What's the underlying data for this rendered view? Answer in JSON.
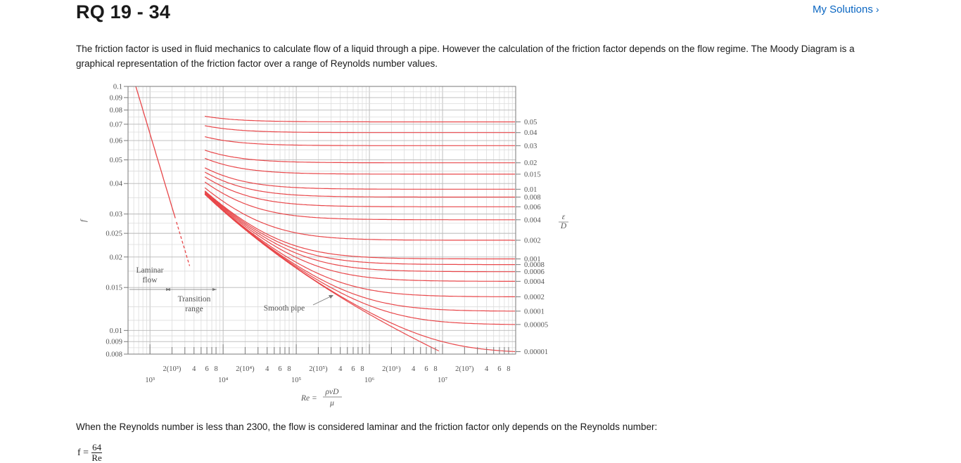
{
  "header": {
    "title": "RQ 19 - 34",
    "my_solutions_label": "My Solutions",
    "my_solutions_icon": "chevron-right-icon"
  },
  "intro_text": "The friction factor is used in fluid mechanics to calculate flow of a liquid through a pipe. However the calculation of the friction factor depends on the flow regime. The Moody Diagram is a graphical representation of the friction factor over a range of Reynolds number values.",
  "diagram": {
    "y_axis_label": "f",
    "right_axis_label_num": "ε",
    "right_axis_label_den": "D",
    "x_formula_lhs": "Re =",
    "x_formula_num": "ρvD",
    "x_formula_den": "μ",
    "laminar_label_1": "Laminar",
    "laminar_label_2": "flow",
    "transition_label_1": "Transition",
    "transition_label_2": "range",
    "smooth_pipe_label": "Smooth pipe",
    "y_ticks": [
      "0.1",
      "0.09",
      "0.08",
      "0.07",
      "0.06",
      "0.05",
      "0.04",
      "0.03",
      "0.025",
      "0.02",
      "0.015",
      "0.01",
      "0.009",
      "0.008"
    ],
    "x_decade_labels": [
      "10³",
      "10⁴",
      "10⁵",
      "10⁶",
      "10⁷"
    ],
    "x_minor_labels": [
      "2(10³)",
      "4",
      "6",
      "8",
      "2(10⁴)",
      "4",
      "6",
      "8",
      "2(10⁵)",
      "4",
      "6",
      "8",
      "2(10⁶)",
      "4",
      "6",
      "8",
      "2(10⁷)",
      "4",
      "6",
      "8"
    ],
    "roughness_labels": [
      "0.05",
      "0.04",
      "0.03",
      "0.02",
      "0.015",
      "0.01",
      "0.008",
      "0.006",
      "0.004",
      "0.002",
      "0.001",
      "0.0008",
      "0.0006",
      "0.0004",
      "0.0002",
      "0.0001",
      "0.00005",
      "0.00001"
    ],
    "curve_color": "#e8474a"
  },
  "laminar_note": "When the Reynolds number is less than 2300, the flow is considered laminar and the friction factor only depends on the Reynolds number:",
  "formula": {
    "lhs": "f =",
    "numerator": "64",
    "denominator": "Re"
  }
}
